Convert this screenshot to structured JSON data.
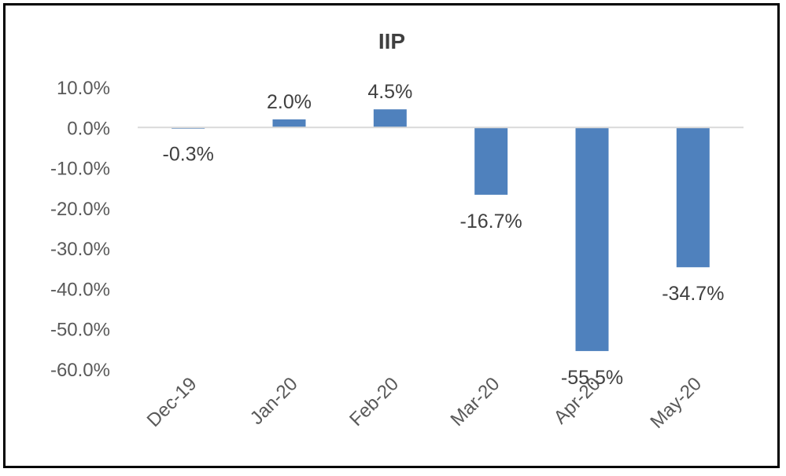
{
  "chart_data": {
    "type": "bar",
    "title": "IIP",
    "categories": [
      "Dec-19",
      "Jan-20",
      "Feb-20",
      "Mar-20",
      "Apr-20",
      "May-20"
    ],
    "series": [
      {
        "values": [
          -0.3,
          2.0,
          4.5,
          -16.7,
          -55.5,
          -34.7
        ],
        "data_labels": [
          "-0.3%",
          "2.0%",
          "4.5%",
          "-16.7%",
          "-55.5%",
          "-34.7%"
        ]
      }
    ],
    "ylim": [
      -60,
      10
    ],
    "yticks": [
      10,
      0,
      -10,
      -20,
      -30,
      -40,
      -50,
      -60
    ],
    "ytick_labels": [
      "10.0%",
      "0.0%",
      "-10.0%",
      "-20.0%",
      "-30.0%",
      "-40.0%",
      "-50.0%",
      "-60.0%"
    ],
    "xlabel": "",
    "ylabel": "",
    "grid": false,
    "legend": "none",
    "bar_color": "#4f81bd",
    "axis_color": "#d9d9d9"
  }
}
